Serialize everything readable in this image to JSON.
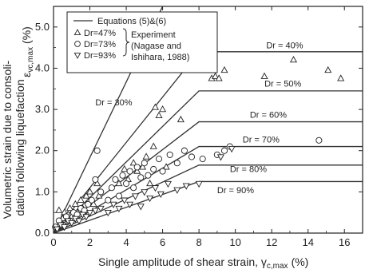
{
  "chart_data": {
    "type": "scatter",
    "xlabel": "Single amplitude of shear strain, γ",
    "xlabel_sub": "c,max",
    "xlabel_unit": "(%)",
    "ylabel_line1": "Volumetric strain due to consoli-",
    "ylabel_line2": "dation following liquefaction",
    "ylabel_symbol": "ε",
    "ylabel_sub": "vc,max",
    "ylabel_unit": "(%)",
    "xlim": [
      0,
      17
    ],
    "ylim": [
      0,
      5.5
    ],
    "xticks": [
      "0",
      "2",
      "4",
      "6",
      "8",
      "10",
      "12",
      "14",
      "16"
    ],
    "yticks": [
      "0.0",
      "1.0",
      "2.0",
      "3.0",
      "4.0",
      "5.0"
    ],
    "legend": {
      "line_label": "Equations (5)&(6)",
      "experiment_label_1": "Experiment",
      "experiment_label_2": "(Nagase and",
      "experiment_label_3": "Ishihara, 1988)",
      "entries": [
        {
          "marker": "triangle-up",
          "label": "Dr=47%"
        },
        {
          "marker": "circle",
          "label": "Dr=73%"
        },
        {
          "marker": "triangle-down",
          "label": "Dr=93%"
        }
      ]
    },
    "curves": [
      {
        "label": "Dr = 30%",
        "points": [
          [
            0,
            0
          ],
          [
            6.0,
            5.5
          ]
        ],
        "label_pos": [
          2.3,
          3.1
        ]
      },
      {
        "label": "Dr = 40%",
        "points": [
          [
            0,
            0
          ],
          [
            8.0,
            4.4
          ],
          [
            17,
            4.4
          ]
        ],
        "label_pos": [
          11.7,
          4.48
        ]
      },
      {
        "label": "Dr = 50%",
        "points": [
          [
            0,
            0
          ],
          [
            8.0,
            3.45
          ],
          [
            17,
            3.45
          ]
        ],
        "label_pos": [
          11.6,
          3.55
        ]
      },
      {
        "label": "Dr = 60%",
        "points": [
          [
            0,
            0
          ],
          [
            8.0,
            2.7
          ],
          [
            17,
            2.7
          ]
        ],
        "label_pos": [
          10.8,
          2.8
        ]
      },
      {
        "label": "Dr = 70%",
        "points": [
          [
            0,
            0
          ],
          [
            8.0,
            2.1
          ],
          [
            17,
            2.1
          ]
        ],
        "label_pos": [
          10.4,
          2.2
        ]
      },
      {
        "label": "Dr = 80%",
        "points": [
          [
            0,
            0
          ],
          [
            8.0,
            1.65
          ],
          [
            17,
            1.65
          ]
        ],
        "label_pos": [
          9.7,
          1.48
        ]
      },
      {
        "label": "Dr = 90%",
        "points": [
          [
            0,
            0
          ],
          [
            8.0,
            1.25
          ],
          [
            17,
            1.25
          ]
        ],
        "label_pos": [
          9.0,
          0.97
        ]
      }
    ],
    "series": [
      {
        "marker": "triangle-up",
        "points": [
          [
            0.3,
            0.55
          ],
          [
            0.5,
            0.35
          ],
          [
            0.6,
            0.5
          ],
          [
            0.8,
            0.45
          ],
          [
            0.9,
            0.6
          ],
          [
            1.0,
            0.4
          ],
          [
            1.2,
            0.7
          ],
          [
            1.3,
            0.5
          ],
          [
            1.5,
            0.8
          ],
          [
            1.6,
            0.6
          ],
          [
            1.8,
            0.9
          ],
          [
            2.0,
            1.0
          ],
          [
            2.2,
            0.7
          ],
          [
            2.4,
            1.2
          ],
          [
            2.5,
            0.9
          ],
          [
            3.6,
            1.2
          ],
          [
            3.9,
            1.55
          ],
          [
            4.1,
            1.3
          ],
          [
            4.4,
            1.7
          ],
          [
            4.6,
            1.5
          ],
          [
            4.9,
            1.6
          ],
          [
            5.1,
            1.85
          ],
          [
            5.3,
            1.2
          ],
          [
            5.5,
            2.1
          ],
          [
            5.6,
            3.05
          ],
          [
            5.8,
            2.85
          ],
          [
            6.0,
            3.0
          ],
          [
            6.2,
            1.6
          ],
          [
            7.0,
            2.75
          ],
          [
            8.7,
            3.75
          ],
          [
            8.9,
            3.8
          ],
          [
            9.1,
            3.75
          ],
          [
            9.4,
            3.95
          ],
          [
            11.6,
            3.8
          ],
          [
            13.2,
            4.2
          ],
          [
            15.1,
            3.95
          ],
          [
            15.8,
            3.75
          ]
        ]
      },
      {
        "marker": "circle",
        "points": [
          [
            0.1,
            0.15
          ],
          [
            0.3,
            0.3
          ],
          [
            0.5,
            0.2
          ],
          [
            0.7,
            0.4
          ],
          [
            0.9,
            0.3
          ],
          [
            1.1,
            0.5
          ],
          [
            1.3,
            0.45
          ],
          [
            1.5,
            0.6
          ],
          [
            1.7,
            0.55
          ],
          [
            1.9,
            0.7
          ],
          [
            2.1,
            0.8
          ],
          [
            2.3,
            1.3
          ],
          [
            2.4,
            2.0
          ],
          [
            2.6,
            1.0
          ],
          [
            3.0,
            0.8
          ],
          [
            3.2,
            1.1
          ],
          [
            3.4,
            1.3
          ],
          [
            3.6,
            0.9
          ],
          [
            3.8,
            1.4
          ],
          [
            4.0,
            1.2
          ],
          [
            4.2,
            1.5
          ],
          [
            4.4,
            1.1
          ],
          [
            4.6,
            1.6
          ],
          [
            4.8,
            1.35
          ],
          [
            5.0,
            1.7
          ],
          [
            5.2,
            1.4
          ],
          [
            5.5,
            1.55
          ],
          [
            5.8,
            1.8
          ],
          [
            6.0,
            1.5
          ],
          [
            6.4,
            1.9
          ],
          [
            6.8,
            1.7
          ],
          [
            7.2,
            2.0
          ],
          [
            7.6,
            1.85
          ],
          [
            8.2,
            1.8
          ],
          [
            9.0,
            1.9
          ],
          [
            9.4,
            2.0
          ],
          [
            9.7,
            2.1
          ],
          [
            14.6,
            2.25
          ]
        ]
      },
      {
        "marker": "triangle-down",
        "points": [
          [
            0.2,
            0.1
          ],
          [
            0.4,
            0.2
          ],
          [
            0.6,
            0.15
          ],
          [
            0.8,
            0.3
          ],
          [
            1.0,
            0.25
          ],
          [
            1.2,
            0.35
          ],
          [
            1.4,
            0.3
          ],
          [
            1.6,
            0.45
          ],
          [
            1.8,
            0.4
          ],
          [
            2.0,
            0.5
          ],
          [
            2.3,
            0.55
          ],
          [
            2.6,
            0.6
          ],
          [
            3.0,
            0.5
          ],
          [
            3.3,
            0.7
          ],
          [
            3.6,
            0.6
          ],
          [
            3.9,
            0.8
          ],
          [
            4.2,
            0.7
          ],
          [
            4.5,
            0.9
          ],
          [
            4.8,
            0.65
          ],
          [
            5.0,
            1.0
          ],
          [
            5.3,
            0.85
          ],
          [
            5.6,
            1.1
          ],
          [
            5.9,
            0.95
          ],
          [
            6.3,
            1.2
          ],
          [
            6.8,
            1.05
          ],
          [
            7.3,
            1.15
          ],
          [
            8.0,
            1.2
          ],
          [
            9.2,
            1.85
          ],
          [
            9.8,
            2.05
          ]
        ]
      }
    ]
  }
}
